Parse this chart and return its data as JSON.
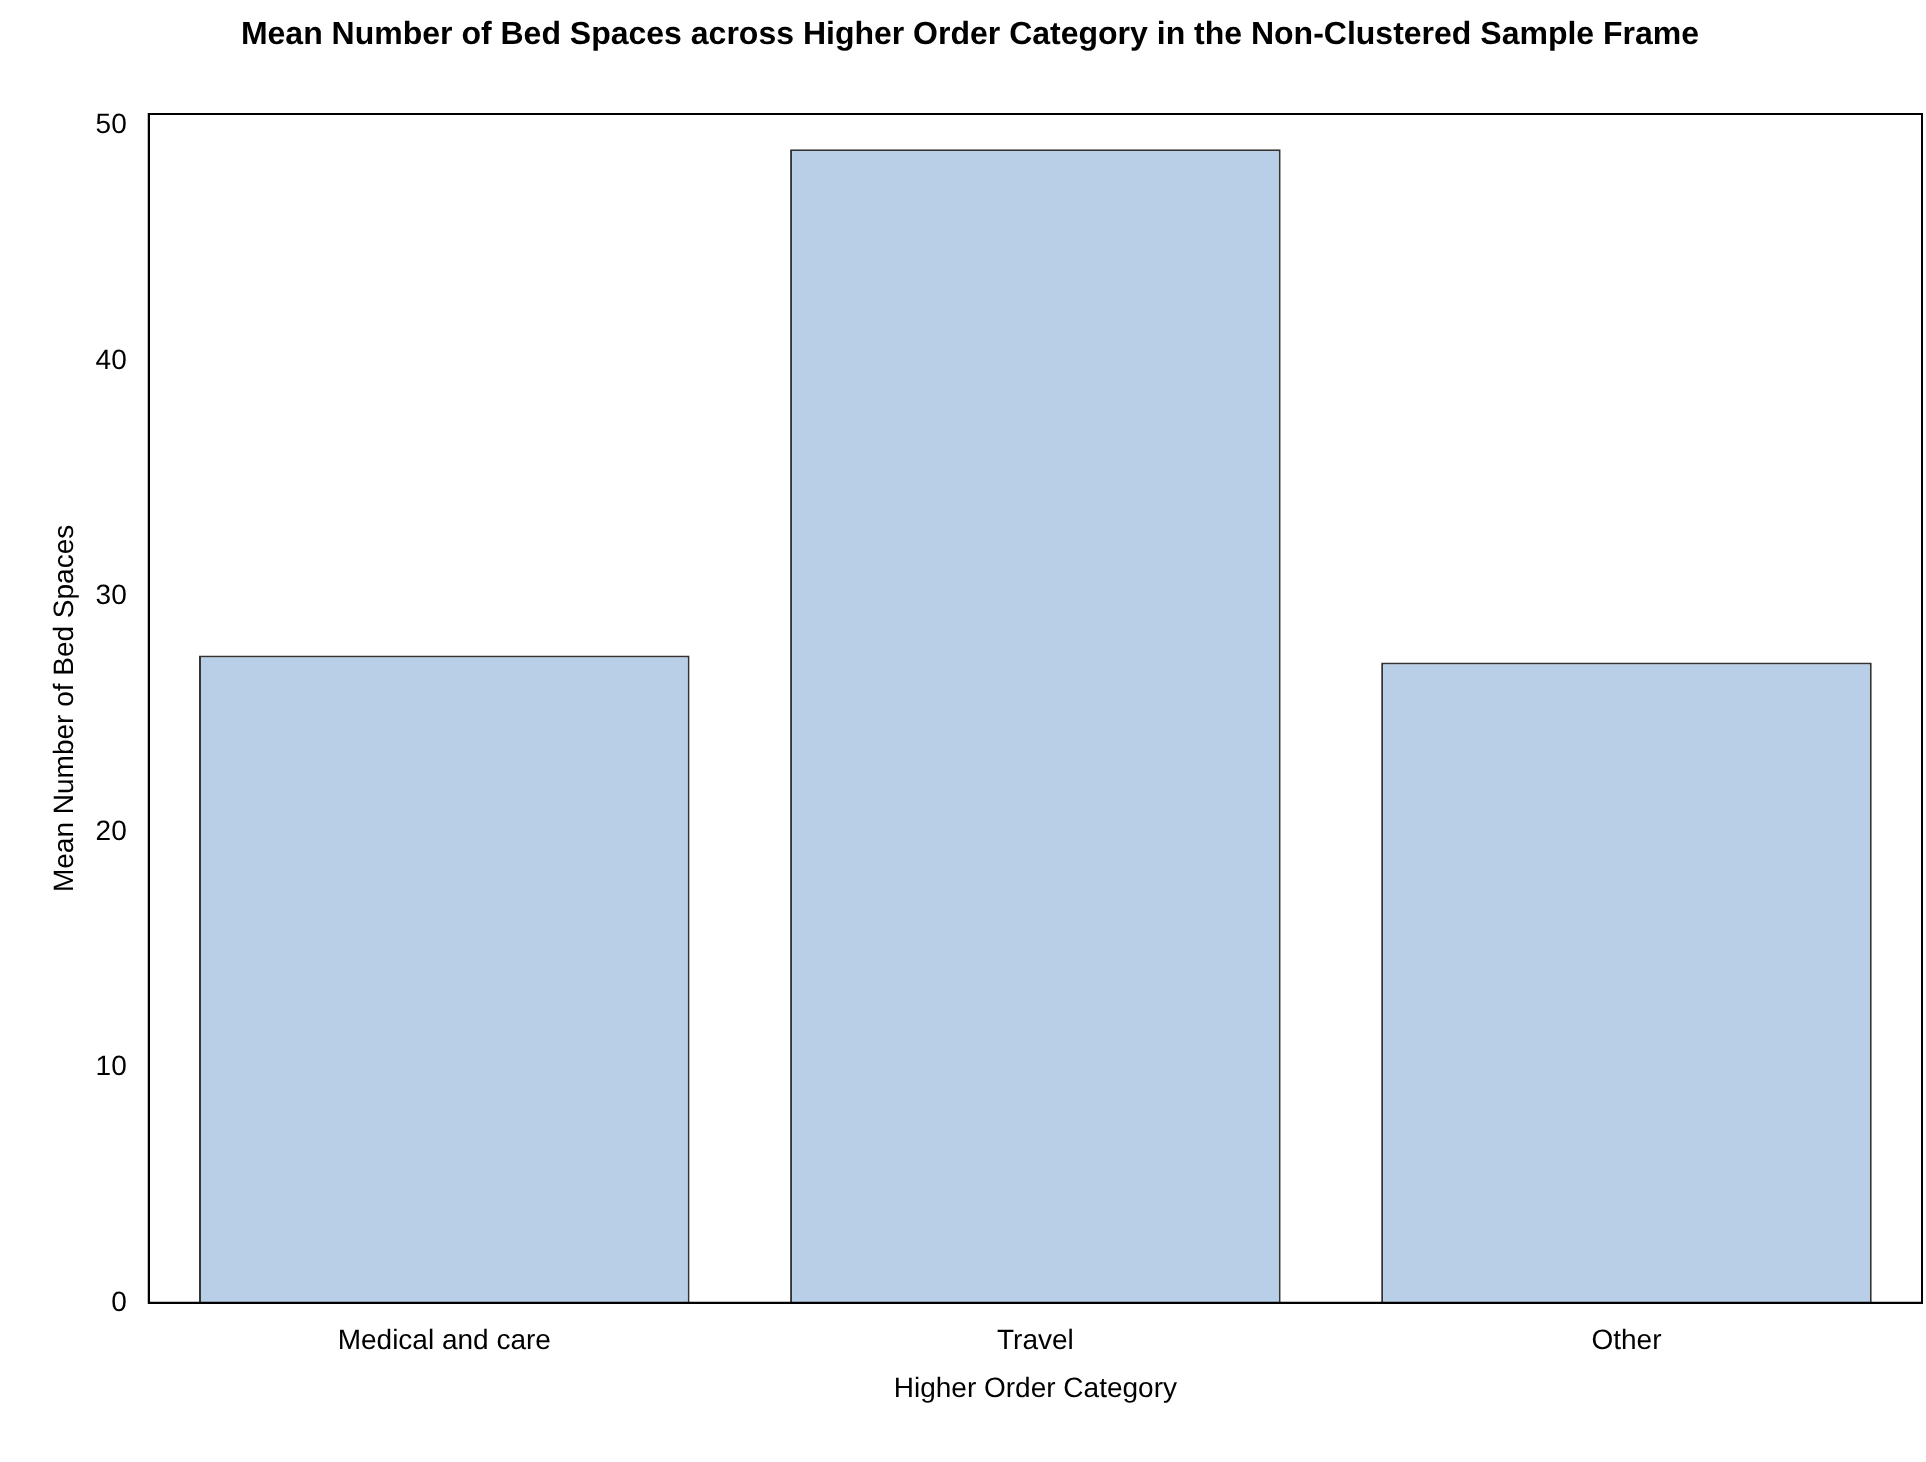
{
  "chart_data": {
    "type": "bar",
    "title": "Mean Number of Bed Spaces across Higher Order Category in the Non-Clustered Sample Frame",
    "xlabel": "Higher Order Category",
    "ylabel": "Mean Number of Bed Spaces",
    "categories": [
      "Medical and care",
      "Travel",
      "Other"
    ],
    "values": [
      27.5,
      49,
      27.2
    ],
    "color": "#b9cfe7",
    "ylim": [
      0,
      50.5
    ],
    "yticks": [
      0,
      10,
      20,
      30,
      40,
      50
    ],
    "grid": false,
    "legend": false
  }
}
